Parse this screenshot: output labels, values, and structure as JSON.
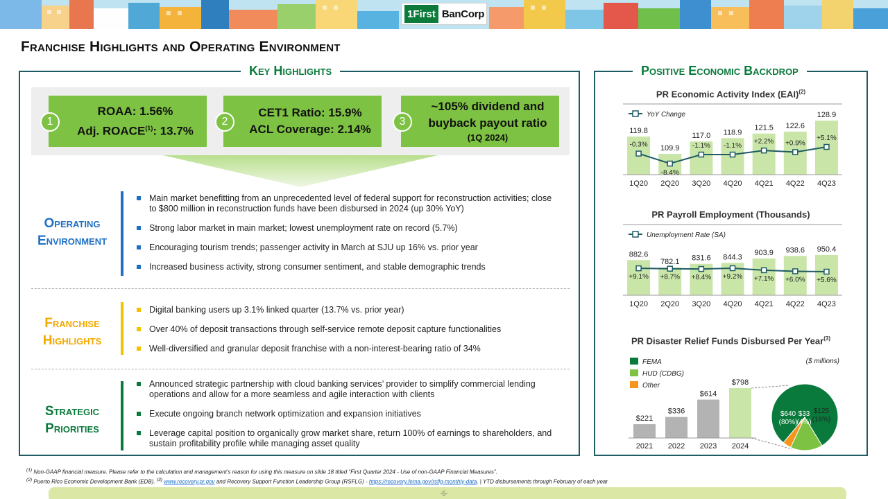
{
  "logo": {
    "mark": "1First",
    "text": "BanCorp"
  },
  "page_title": "Franchise Highlights and Operating Environment",
  "left_panel": {
    "title": "Key Highlights",
    "cards": [
      {
        "num": "1",
        "line1": "ROAA: 1.56%",
        "line2_pre": "Adj. ROACE",
        "line2_sup": "(1)",
        "line2_post": ": 13.7%"
      },
      {
        "num": "2",
        "line1": "CET1 Ratio: 15.9%",
        "line2": "ACL Coverage: 2.14%"
      },
      {
        "num": "3",
        "line1": "~105% dividend and",
        "line2": "buyback payout ratio",
        "line3": "(1Q 2024)"
      }
    ],
    "sections": [
      {
        "label_line1": "Operating",
        "label_line2": "Environment",
        "color": "#1f6fc4",
        "bullets": [
          "Main market benefitting from an unprecedented  level of federal support for reconstruction activities; close to $800 million in reconstruction  funds have been disbursed in 2024 (up 30% YoY)",
          "Strong labor market in main market; lowest unemployment  rate on record (5.7%)",
          "Encouraging tourism trends; passenger activity in March at SJU up 16% vs. prior year",
          "Increased business activity, strong consumer sentiment, and stable demographic trends"
        ]
      },
      {
        "label_line1": "Franchise",
        "label_line2": "Highlights",
        "color": "#f2a900",
        "bullets": [
          "Digital banking users up 3.1% linked quarter  (13.7% vs. prior year)",
          "Over 40% of deposit transactions through self-service remote deposit capture  functionalities",
          "Well-diversified and granular deposit franchise with  a non-interest-bearing ratio of 34%"
        ]
      },
      {
        "label_line1": "Strategic",
        "label_line2": "Priorities",
        "color": "#0a7a3c",
        "bullets": [
          "Announced  strategic partnership with cloud banking services’ provider to simplify commercial lending operations and allow  for a more seamless and agile interaction with clients",
          "Execute ongoing branch network optimization and expansion initiatives",
          "Leverage capital position to organically  grow market share, return 100% of earnings to shareholders,  and sustain profitability profile  while managing asset quality"
        ]
      }
    ]
  },
  "right_panel": {
    "title": "Positive Economic Backdrop"
  },
  "chart_data": [
    {
      "type": "bar",
      "title": "PR Economic Activity Index (EAI)",
      "title_sup": "(2)",
      "categories": [
        "1Q20",
        "2Q20",
        "3Q20",
        "4Q20",
        "4Q21",
        "4Q22",
        "4Q23"
      ],
      "values": [
        119.8,
        109.9,
        117.0,
        118.9,
        121.5,
        122.6,
        128.9
      ],
      "value_labels": [
        "119.8",
        "109.9",
        "117.0",
        "118.9",
        "121.5",
        "122.6",
        "128.9"
      ],
      "line_series": {
        "name": "YoY Change",
        "values": [
          -0.3,
          -8.4,
          -1.1,
          -1.1,
          2.2,
          0.9,
          5.1
        ],
        "labels": [
          "-0.3%",
          "-8.4%",
          "-1.1%",
          "-1.1%",
          "+2.2%",
          "+0.9%",
          "+5.1%"
        ]
      },
      "colors": {
        "bar": "#c9e6a8",
        "line": "#1e5b63"
      }
    },
    {
      "type": "bar",
      "title": "PR Payroll Employment  (Thousands)",
      "categories": [
        "1Q20",
        "2Q20",
        "3Q20",
        "4Q20",
        "4Q21",
        "4Q22",
        "4Q23"
      ],
      "values": [
        882.6,
        782.1,
        831.6,
        844.3,
        903.9,
        938.6,
        950.4
      ],
      "value_labels": [
        "882.6",
        "782.1",
        "831.6",
        "844.3",
        "903.9",
        "938.6",
        "950.4"
      ],
      "line_series": {
        "name": "Unemployment Rate (SA)",
        "values": [
          9.1,
          8.7,
          8.4,
          9.2,
          7.1,
          6.0,
          5.6
        ],
        "labels": [
          "+9.1%",
          "+8.7%",
          "+8.4%",
          "+9.2%",
          "+7.1%",
          "+6.0%",
          "+5.6%"
        ]
      },
      "colors": {
        "bar": "#c9e6a8",
        "line": "#1e5b63"
      }
    },
    {
      "type": "bar",
      "title": "PR Disaster Relief Funds Disbursed Per Year",
      "title_sup": "(3)",
      "unit_note": "($ millions)",
      "categories": [
        "2021",
        "2022",
        "2023",
        "2024"
      ],
      "values": [
        221,
        336,
        614,
        798
      ],
      "value_labels": [
        "$221",
        "$336",
        "$614",
        "$798"
      ],
      "legend": [
        {
          "name": "FEMA",
          "color": "#0a7a3c"
        },
        {
          "name": "HUD (CDBG)",
          "color": "#7dc242"
        },
        {
          "name": "Other",
          "color": "#f7941d"
        }
      ],
      "colors": {
        "bar": "#b3b3b3",
        "bar_highlight": "#c9e6a8"
      },
      "pie": {
        "slices": [
          {
            "name": "FEMA",
            "value": 640,
            "label": "$640",
            "pct": "(80%)",
            "color": "#0a7a3c"
          },
          {
            "name": "HUD (CDBG)",
            "value": 125,
            "label": "$125",
            "pct": "(16%)",
            "color": "#7dc242"
          },
          {
            "name": "Other",
            "value": 33,
            "label": "$33",
            "pct": "(4%)",
            "color": "#f7941d"
          }
        ]
      }
    }
  ],
  "footnotes": {
    "line1_sup": "(1)",
    "line1": "Non-GAAP financial measure. Please refer to the calculation and management’s reason for using this measure on slide 18 titled “First Quarter 2024 - Use of non-GAAP Financial Measures”.",
    "line2_sup": "(2)",
    "line2_a": "Puerto Rico Economic Development Bank (EDB).",
    "line2_sup3": "(3)",
    "line2_link1": "www.recovery.pr.gov",
    "line2_b": "and Recovery  Support Function Leadership Group (RSFLG)  -",
    "line2_link2": "https://recovery.fema.gov/rsflg-monthly-data",
    "line2_c": ". | YTD disbursements through February of each year"
  },
  "page_number": "-5-"
}
